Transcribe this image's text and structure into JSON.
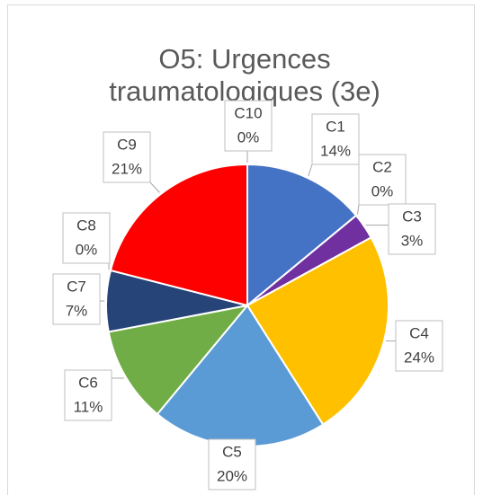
{
  "chart_data": {
    "type": "pie",
    "title": "O5: Urgences traumatologiques (3e)",
    "categories": [
      "C1",
      "C2",
      "C3",
      "C4",
      "C5",
      "C6",
      "C7",
      "C8",
      "C9",
      "C10"
    ],
    "values": [
      14,
      0,
      3,
      24,
      20,
      11,
      7,
      0,
      21,
      0
    ],
    "value_labels": [
      "14%",
      "0%",
      "3%",
      "24%",
      "20%",
      "11%",
      "7%",
      "0%",
      "21%",
      "0%"
    ],
    "colors": [
      "#4472c4",
      "#ed7d31",
      "#7030a0",
      "#ffc000",
      "#5b9bd5",
      "#70ad47",
      "#264478",
      "#9e480e",
      "#ff0000",
      "#636363"
    ]
  }
}
